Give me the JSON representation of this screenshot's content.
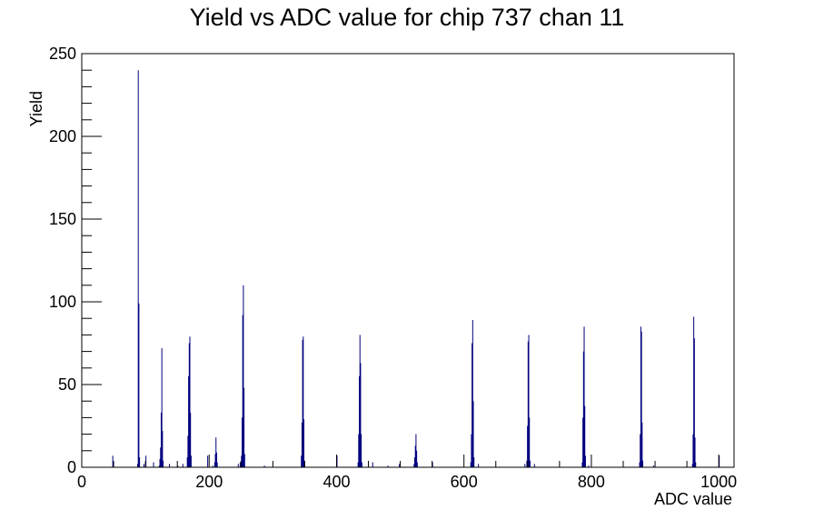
{
  "chart_data": {
    "type": "bar",
    "title": "Yield vs ADC value for chip 737 chan 11",
    "xlabel": "ADC value",
    "ylabel": "Yield",
    "xlim": [
      0,
      1024
    ],
    "ylim": [
      0,
      250
    ],
    "x_ticks": [
      0,
      200,
      400,
      600,
      800,
      1000
    ],
    "y_ticks": [
      0,
      50,
      100,
      150,
      200,
      250
    ],
    "grid": false,
    "legend": "none",
    "bin_width": 1,
    "colors": {
      "series": "#00007f",
      "axes": "#000000"
    },
    "series": [
      {
        "bins": [
          {
            "x": 48,
            "y": 7
          },
          {
            "x": 87,
            "y": 2
          },
          {
            "x": 88,
            "y": 240
          },
          {
            "x": 89,
            "y": 99
          },
          {
            "x": 90,
            "y": 6
          },
          {
            "x": 97,
            "y": 2
          },
          {
            "x": 100,
            "y": 7
          },
          {
            "x": 112,
            "y": 3
          },
          {
            "x": 121,
            "y": 1
          },
          {
            "x": 122,
            "y": 5
          },
          {
            "x": 123,
            "y": 12
          },
          {
            "x": 124,
            "y": 33
          },
          {
            "x": 125,
            "y": 72
          },
          {
            "x": 126,
            "y": 22
          },
          {
            "x": 127,
            "y": 4
          },
          {
            "x": 137,
            "y": 2
          },
          {
            "x": 150,
            "y": 1
          },
          {
            "x": 158,
            "y": 2
          },
          {
            "x": 165,
            "y": 6
          },
          {
            "x": 166,
            "y": 19
          },
          {
            "x": 167,
            "y": 55
          },
          {
            "x": 168,
            "y": 75
          },
          {
            "x": 169,
            "y": 79
          },
          {
            "x": 170,
            "y": 33
          },
          {
            "x": 171,
            "y": 7
          },
          {
            "x": 197,
            "y": 7
          },
          {
            "x": 205,
            "y": 1
          },
          {
            "x": 208,
            "y": 3
          },
          {
            "x": 209,
            "y": 8
          },
          {
            "x": 210,
            "y": 18
          },
          {
            "x": 211,
            "y": 9
          },
          {
            "x": 212,
            "y": 3
          },
          {
            "x": 245,
            "y": 2
          },
          {
            "x": 248,
            "y": 3
          },
          {
            "x": 250,
            "y": 7
          },
          {
            "x": 251,
            "y": 30
          },
          {
            "x": 252,
            "y": 92
          },
          {
            "x": 253,
            "y": 110
          },
          {
            "x": 254,
            "y": 48
          },
          {
            "x": 255,
            "y": 8
          },
          {
            "x": 286,
            "y": 1
          },
          {
            "x": 344,
            "y": 7
          },
          {
            "x": 345,
            "y": 27
          },
          {
            "x": 346,
            "y": 77
          },
          {
            "x": 347,
            "y": 79
          },
          {
            "x": 348,
            "y": 29
          },
          {
            "x": 349,
            "y": 4
          },
          {
            "x": 400,
            "y": 7
          },
          {
            "x": 433,
            "y": 3
          },
          {
            "x": 434,
            "y": 20
          },
          {
            "x": 435,
            "y": 55
          },
          {
            "x": 436,
            "y": 80
          },
          {
            "x": 437,
            "y": 63
          },
          {
            "x": 438,
            "y": 20
          },
          {
            "x": 439,
            "y": 3
          },
          {
            "x": 456,
            "y": 3
          },
          {
            "x": 480,
            "y": 1
          },
          {
            "x": 498,
            "y": 2
          },
          {
            "x": 521,
            "y": 2
          },
          {
            "x": 522,
            "y": 6
          },
          {
            "x": 523,
            "y": 13
          },
          {
            "x": 524,
            "y": 20
          },
          {
            "x": 525,
            "y": 10
          },
          {
            "x": 526,
            "y": 3
          },
          {
            "x": 550,
            "y": 3
          },
          {
            "x": 610,
            "y": 3
          },
          {
            "x": 611,
            "y": 20
          },
          {
            "x": 612,
            "y": 75
          },
          {
            "x": 613,
            "y": 89
          },
          {
            "x": 614,
            "y": 40
          },
          {
            "x": 615,
            "y": 6
          },
          {
            "x": 622,
            "y": 2
          },
          {
            "x": 695,
            "y": 2
          },
          {
            "x": 698,
            "y": 4
          },
          {
            "x": 699,
            "y": 25
          },
          {
            "x": 700,
            "y": 76
          },
          {
            "x": 701,
            "y": 80
          },
          {
            "x": 702,
            "y": 30
          },
          {
            "x": 703,
            "y": 4
          },
          {
            "x": 710,
            "y": 2
          },
          {
            "x": 785,
            "y": 3
          },
          {
            "x": 786,
            "y": 30
          },
          {
            "x": 787,
            "y": 70
          },
          {
            "x": 788,
            "y": 85
          },
          {
            "x": 789,
            "y": 37
          },
          {
            "x": 790,
            "y": 7
          },
          {
            "x": 795,
            "y": 1
          },
          {
            "x": 875,
            "y": 3
          },
          {
            "x": 876,
            "y": 20
          },
          {
            "x": 877,
            "y": 85
          },
          {
            "x": 878,
            "y": 82
          },
          {
            "x": 879,
            "y": 27
          },
          {
            "x": 880,
            "y": 4
          },
          {
            "x": 897,
            "y": 1
          },
          {
            "x": 958,
            "y": 2
          },
          {
            "x": 959,
            "y": 20
          },
          {
            "x": 960,
            "y": 91
          },
          {
            "x": 961,
            "y": 78
          },
          {
            "x": 962,
            "y": 18
          },
          {
            "x": 963,
            "y": 3
          },
          {
            "x": 1000,
            "y": 7
          }
        ]
      }
    ]
  }
}
